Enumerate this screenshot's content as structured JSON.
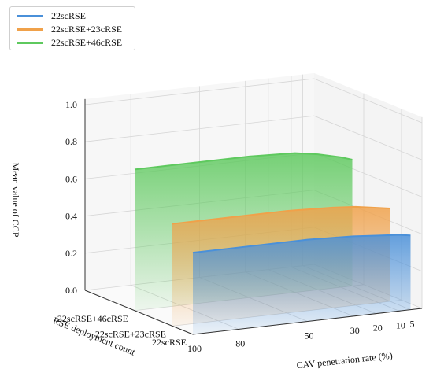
{
  "chart_data": {
    "type": "area3d",
    "title": "",
    "zlabel": "Mean value of CCP",
    "ylabel": "RSE deployment count",
    "xlabel": "CAV penetration rate (%)",
    "zlim": [
      0.0,
      1.0
    ],
    "z_ticks": [
      "0.0",
      "0.2",
      "0.4",
      "0.6",
      "0.8",
      "1.0"
    ],
    "x_ticks": [
      "100",
      "80",
      "50",
      "30",
      "20",
      "10",
      "5"
    ],
    "categories": [
      "22scRSE",
      "22scRSE+23cRSE",
      "22scRSE+46cRSE"
    ],
    "legend_position": "top-left",
    "grid": true,
    "series": [
      {
        "name": "22scRSE",
        "color": "#4a90d9",
        "x": [
          100,
          80,
          50,
          30,
          20,
          10,
          5
        ],
        "values": [
          0.44,
          0.44,
          0.44,
          0.43,
          0.42,
          0.41,
          0.4
        ]
      },
      {
        "name": "22scRSE+23cRSE",
        "color": "#f0a14a",
        "x": [
          100,
          80,
          50,
          30,
          20,
          10,
          5
        ],
        "values": [
          0.55,
          0.55,
          0.55,
          0.54,
          0.53,
          0.51,
          0.5
        ]
      },
      {
        "name": "22scRSE+46cRSE",
        "color": "#5ec95e",
        "x": [
          100,
          80,
          50,
          30,
          20,
          10,
          5
        ],
        "values": [
          0.76,
          0.76,
          0.76,
          0.75,
          0.73,
          0.7,
          0.68
        ]
      }
    ]
  }
}
